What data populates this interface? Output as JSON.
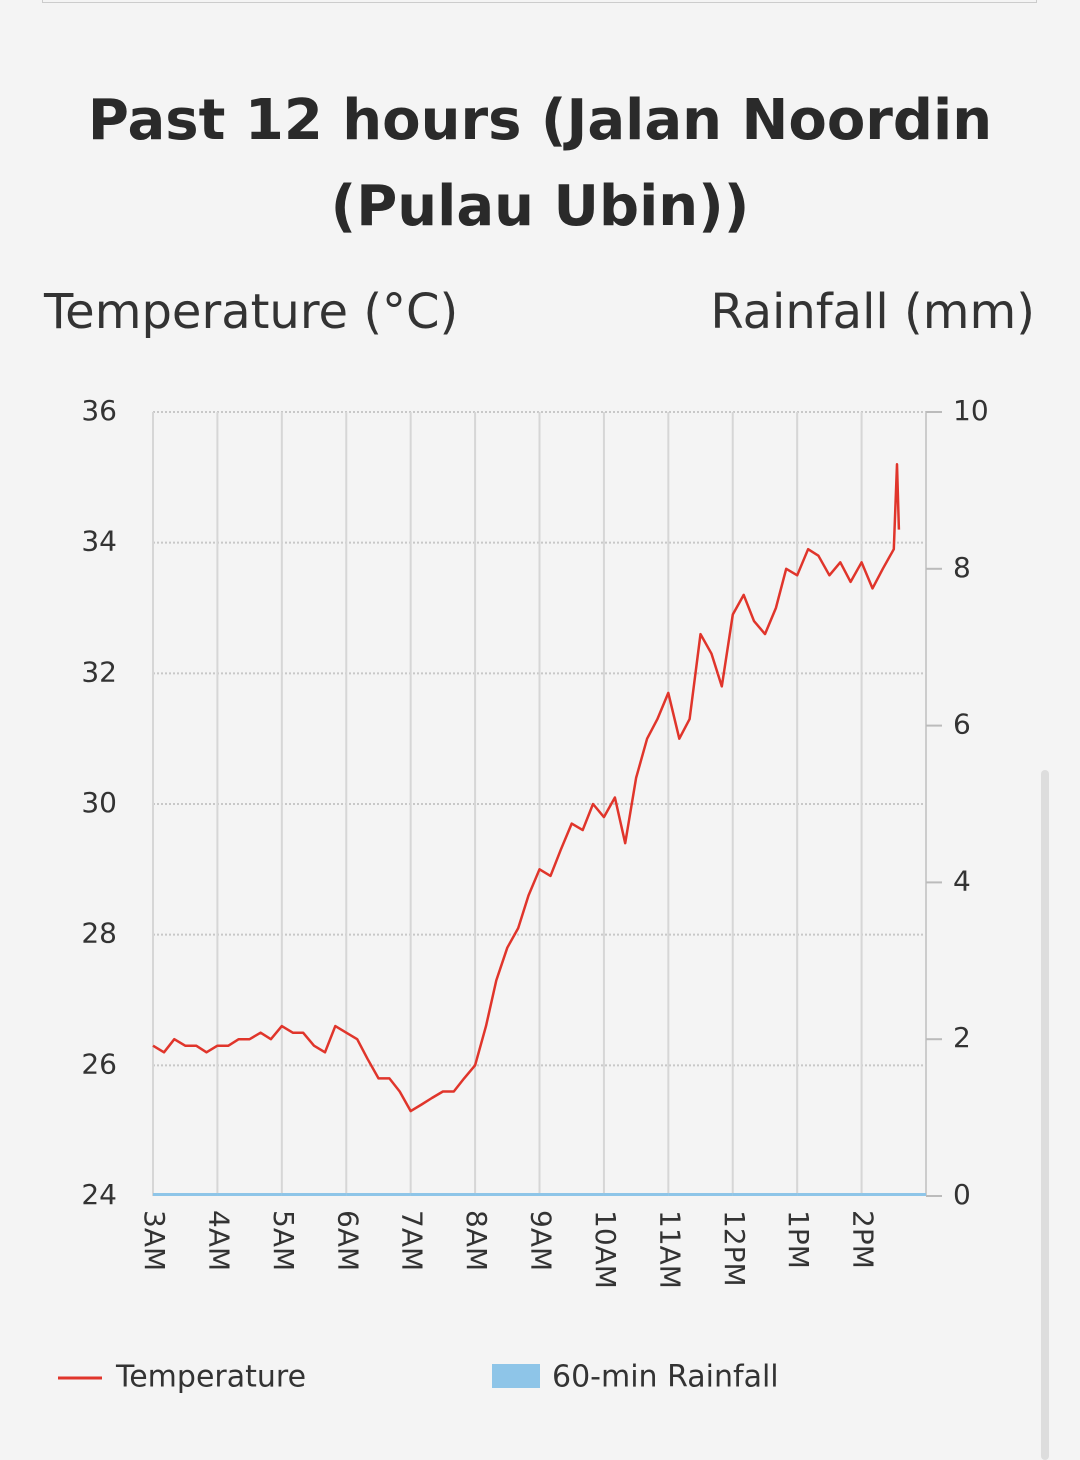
{
  "chart_data": {
    "type": "line",
    "title": "Past 12 hours (Jalan Noordin (Pulau Ubin))",
    "ylabel": "Temperature (°C)",
    "y2label": "Rainfall (mm)",
    "xlim": [
      3,
      15
    ],
    "xticks": [
      {
        "value": 3,
        "label": "3AM"
      },
      {
        "value": 4,
        "label": "4AM"
      },
      {
        "value": 5,
        "label": "5AM"
      },
      {
        "value": 6,
        "label": "6AM"
      },
      {
        "value": 7,
        "label": "7AM"
      },
      {
        "value": 8,
        "label": "8AM"
      },
      {
        "value": 9,
        "label": "9AM"
      },
      {
        "value": 10,
        "label": "10AM"
      },
      {
        "value": 11,
        "label": "11AM"
      },
      {
        "value": 12,
        "label": "12PM"
      },
      {
        "value": 13,
        "label": "1PM"
      },
      {
        "value": 14,
        "label": "2PM"
      }
    ],
    "ylim": [
      24,
      36
    ],
    "yticks": [
      24,
      26,
      28,
      30,
      32,
      34,
      36
    ],
    "y2lim": [
      0,
      10
    ],
    "y2ticks": [
      0,
      2,
      4,
      6,
      8,
      10
    ],
    "grid": true,
    "series": [
      {
        "name": "Temperature",
        "type": "line",
        "color": "#e0352b",
        "x": [
          3,
          3.17,
          3.33,
          3.5,
          3.67,
          3.83,
          4,
          4.17,
          4.33,
          4.5,
          4.67,
          4.83,
          5,
          5.17,
          5.33,
          5.5,
          5.67,
          5.83,
          6,
          6.17,
          6.33,
          6.5,
          6.67,
          6.83,
          7,
          7.17,
          7.33,
          7.5,
          7.67,
          7.83,
          8,
          8.17,
          8.33,
          8.5,
          8.67,
          8.83,
          9,
          9.17,
          9.33,
          9.5,
          9.67,
          9.83,
          10,
          10.17,
          10.33,
          10.5,
          10.67,
          10.83,
          11,
          11.17,
          11.33,
          11.5,
          11.67,
          11.83,
          12,
          12.17,
          12.33,
          12.5,
          12.67,
          12.83,
          13,
          13.17,
          13.33,
          13.5,
          13.67,
          13.83,
          14,
          14.17,
          14.33,
          14.5,
          14.55,
          14.58
        ],
        "values": [
          26.3,
          26.2,
          26.4,
          26.3,
          26.3,
          26.2,
          26.3,
          26.3,
          26.4,
          26.4,
          26.5,
          26.4,
          26.6,
          26.5,
          26.5,
          26.3,
          26.2,
          26.6,
          26.5,
          26.4,
          26.1,
          25.8,
          25.8,
          25.6,
          25.3,
          25.4,
          25.5,
          25.6,
          25.6,
          25.8,
          26.0,
          26.6,
          27.3,
          27.8,
          28.1,
          28.6,
          29.0,
          28.9,
          29.3,
          29.7,
          29.6,
          30.0,
          29.8,
          30.1,
          29.4,
          30.4,
          31.0,
          31.3,
          31.7,
          31.0,
          31.3,
          32.6,
          32.3,
          31.8,
          32.9,
          33.2,
          32.8,
          32.6,
          33.0,
          33.6,
          33.5,
          33.9,
          33.8,
          33.5,
          33.7,
          33.4,
          33.7,
          33.3,
          33.6,
          33.9,
          35.2,
          34.2
        ]
      },
      {
        "name": "60-min Rainfall",
        "type": "bar",
        "axis": "y2",
        "color": "#8ec5e8",
        "x": [
          3,
          4,
          5,
          6,
          7,
          8,
          9,
          10,
          11,
          12,
          13,
          14
        ],
        "values": [
          0,
          0,
          0,
          0,
          0,
          0,
          0,
          0,
          0,
          0,
          0,
          0
        ]
      }
    ]
  }
}
